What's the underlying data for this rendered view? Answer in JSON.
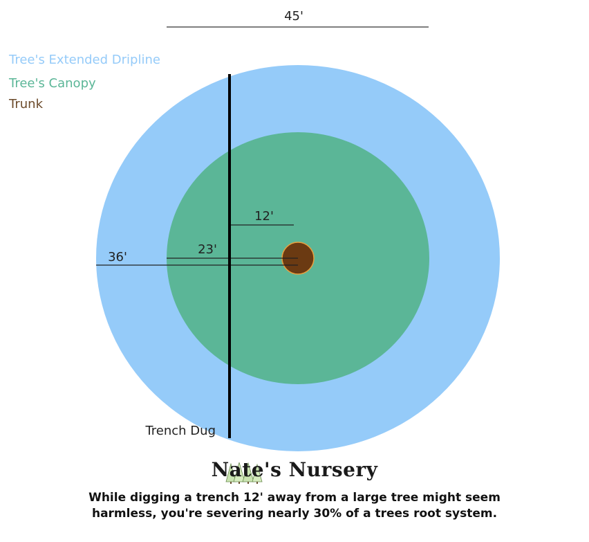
{
  "dimensions": {
    "overall_width_label": "45'",
    "canopy_radius_label": "23'",
    "dripline_radius_label": "36'",
    "trench_distance_label": "12'"
  },
  "legend": {
    "dripline": "Tree's Extended Dripline",
    "canopy": "Tree's Canopy",
    "trunk": "Trunk"
  },
  "trench_label": "Trench Dug",
  "brand": {
    "name": "Nate's Nursery",
    "logo_icon": "pine-trees-logo"
  },
  "caption": {
    "line1": "While digging a trench 12' away from a large tree might seem",
    "line2": "harmless, you're severing nearly 30% of a trees root system."
  },
  "colors": {
    "dripline": "#95cbf9",
    "canopy": "#5bb697",
    "trunk": "#6b3a12",
    "trunk_outline": "#e8a040",
    "trench": "#000000",
    "dripline_text": "#95cbf9",
    "canopy_text": "#5bb697",
    "trunk_text": "#6b4a2a"
  }
}
